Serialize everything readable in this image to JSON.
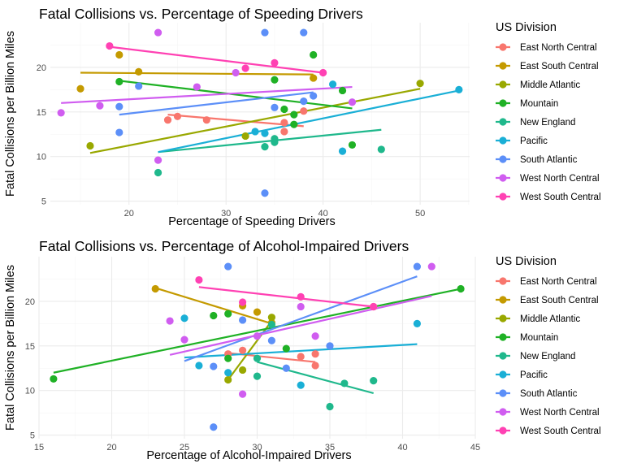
{
  "divisions": [
    "East North Central",
    "East South Central",
    "Middle Atlantic",
    "Mountain",
    "New England",
    "Pacific",
    "South Atlantic",
    "West North Central",
    "West South Central"
  ],
  "colors": {
    "East North Central": "#F8766D",
    "East South Central": "#C49A00",
    "Middle Atlantic": "#99A800",
    "Mountain": "#1FB125",
    "New England": "#1FB88C",
    "Pacific": "#1AAFD6",
    "South Atlantic": "#5C8FF8",
    "West North Central": "#D05DF0",
    "West South Central": "#FF41B3"
  },
  "chart_data": [
    {
      "type": "scatter",
      "title": "Fatal Collisions vs. Percentage of Speeding Drivers",
      "xlabel": "Percentage of Speeding Drivers",
      "ylabel": "Fatal Collisions per Billion Miles",
      "legend_title": "US Division",
      "xlim": [
        11.9,
        55.1
      ],
      "ylim": [
        4.6,
        25.0
      ],
      "xticks": [
        20,
        30,
        40,
        50
      ],
      "yticks": [
        5,
        10,
        15,
        20
      ],
      "grid": true,
      "legend_position": "right",
      "series": [
        {
          "name": "East North Central",
          "points": [
            [
              24,
              14.1
            ],
            [
              25,
              14.5
            ],
            [
              28,
              14.1
            ],
            [
              36,
              13.8
            ],
            [
              36,
              12.8
            ],
            [
              38,
              15.1
            ]
          ],
          "fit": [
            [
              24,
              14.7
            ],
            [
              38,
              13.4
            ]
          ]
        },
        {
          "name": "East South Central",
          "points": [
            [
              15,
              17.6
            ],
            [
              19,
              21.4
            ],
            [
              21,
              19.5
            ],
            [
              39,
              18.8
            ]
          ],
          "fit": [
            [
              15,
              19.4
            ],
            [
              39,
              19.2
            ]
          ]
        },
        {
          "name": "Middle Atlantic",
          "points": [
            [
              16,
              11.2
            ],
            [
              32,
              12.3
            ],
            [
              50,
              18.2
            ]
          ],
          "fit": [
            [
              16,
              10.4
            ],
            [
              50,
              17.6
            ]
          ]
        },
        {
          "name": "Mountain",
          "points": [
            [
              19,
              18.4
            ],
            [
              35,
              18.6
            ],
            [
              39,
              21.4
            ],
            [
              36,
              15.3
            ],
            [
              37,
              14.7
            ],
            [
              37,
              13.6
            ],
            [
              42,
              17.4
            ],
            [
              43,
              11.3
            ]
          ],
          "fit": [
            [
              19,
              18.5
            ],
            [
              43,
              15.4
            ]
          ]
        },
        {
          "name": "New England",
          "points": [
            [
              23,
              8.2
            ],
            [
              34,
              11.1
            ],
            [
              35,
              11.6
            ],
            [
              35,
              12.0
            ],
            [
              46,
              10.8
            ]
          ],
          "fit": [
            [
              23,
              10.5
            ],
            [
              46,
              13.0
            ]
          ]
        },
        {
          "name": "Pacific",
          "points": [
            [
              33,
              12.8
            ],
            [
              34,
              12.6
            ],
            [
              41,
              18.1
            ],
            [
              42,
              10.6
            ],
            [
              54,
              17.5
            ]
          ],
          "fit": [
            [
              23,
              10.5
            ],
            [
              54,
              17.4
            ]
          ]
        },
        {
          "name": "South Atlantic",
          "points": [
            [
              19,
              15.6
            ],
            [
              19,
              12.7
            ],
            [
              21,
              17.9
            ],
            [
              34,
              23.9
            ],
            [
              34,
              5.9
            ],
            [
              38,
              23.9
            ],
            [
              38,
              16.2
            ],
            [
              39,
              16.8
            ],
            [
              35,
              15.5
            ]
          ],
          "fit": [
            [
              19,
              14.7
            ],
            [
              39,
              17.2
            ]
          ]
        },
        {
          "name": "West North Central",
          "points": [
            [
              13,
              14.9
            ],
            [
              17,
              15.7
            ],
            [
              23,
              9.6
            ],
            [
              23,
              23.9
            ],
            [
              27,
              17.8
            ],
            [
              31,
              19.4
            ],
            [
              43,
              16.1
            ]
          ],
          "fit": [
            [
              13,
              16.0
            ],
            [
              43,
              17.8
            ]
          ]
        },
        {
          "name": "West South Central",
          "points": [
            [
              18,
              22.4
            ],
            [
              32,
              19.9
            ],
            [
              35,
              20.5
            ],
            [
              40,
              19.4
            ]
          ],
          "fit": [
            [
              18,
              22.3
            ],
            [
              40,
              19.4
            ]
          ]
        }
      ]
    },
    {
      "type": "scatter",
      "title": "Fatal Collisions vs. Percentage of Alcohol-Impaired Drivers",
      "xlabel": "Percentage of Alcohol-Impaired Drivers",
      "ylabel": "Fatal Collisions per Billion Miles",
      "legend_title": "US Division",
      "xlim": [
        15.0,
        45.0
      ],
      "ylim": [
        4.6,
        25.0
      ],
      "xticks": [
        15,
        20,
        25,
        30,
        35,
        40,
        45
      ],
      "yticks": [
        5,
        10,
        15,
        20
      ],
      "grid": true,
      "legend_position": "right",
      "series": [
        {
          "name": "East North Central",
          "points": [
            [
              28,
              14.1
            ],
            [
              29,
              14.5
            ],
            [
              33,
              13.8
            ],
            [
              34,
              14.1
            ],
            [
              34,
              12.8
            ],
            [
              38,
              19.4
            ]
          ],
          "fit": [
            [
              28,
              14.2
            ],
            [
              34,
              13.2
            ]
          ]
        },
        {
          "name": "East South Central",
          "points": [
            [
              23,
              21.4
            ],
            [
              29,
              19.5
            ],
            [
              30,
              18.8
            ],
            [
              31,
              17.6
            ]
          ],
          "fit": [
            [
              23,
              21.5
            ],
            [
              31,
              17.5
            ]
          ]
        },
        {
          "name": "Middle Atlantic",
          "points": [
            [
              28,
              11.2
            ],
            [
              29,
              12.3
            ],
            [
              31,
              18.2
            ]
          ],
          "fit": [
            [
              28,
              11.2
            ],
            [
              31,
              17.8
            ]
          ]
        },
        {
          "name": "Mountain",
          "points": [
            [
              16,
              11.3
            ],
            [
              27,
              18.4
            ],
            [
              28,
              18.6
            ],
            [
              28,
              13.6
            ],
            [
              32,
              14.7
            ],
            [
              44,
              21.4
            ]
          ],
          "fit": [
            [
              16,
              12.0
            ],
            [
              44,
              21.4
            ]
          ]
        },
        {
          "name": "New England",
          "points": [
            [
              30,
              13.6
            ],
            [
              30,
              11.6
            ],
            [
              31,
              17.4
            ],
            [
              35,
              8.2
            ],
            [
              36,
              10.8
            ],
            [
              38,
              11.1
            ]
          ],
          "fit": [
            [
              30,
              13.2
            ],
            [
              38,
              9.7
            ]
          ]
        },
        {
          "name": "Pacific",
          "points": [
            [
              25,
              18.1
            ],
            [
              26,
              12.8
            ],
            [
              28,
              12.0
            ],
            [
              33,
              10.6
            ],
            [
              41,
              17.5
            ]
          ],
          "fit": [
            [
              25,
              13.7
            ],
            [
              41,
              15.2
            ]
          ]
        },
        {
          "name": "South Atlantic",
          "points": [
            [
              27,
              5.9
            ],
            [
              27,
              12.7
            ],
            [
              28,
              23.9
            ],
            [
              29,
              17.9
            ],
            [
              31,
              15.6
            ],
            [
              32,
              12.5
            ],
            [
              35,
              15.0
            ],
            [
              41,
              23.9
            ]
          ],
          "fit": [
            [
              25,
              13.3
            ],
            [
              41,
              22.8
            ]
          ]
        },
        {
          "name": "West North Central",
          "points": [
            [
              24,
              17.8
            ],
            [
              25,
              15.7
            ],
            [
              29,
              9.6
            ],
            [
              30,
              16.1
            ],
            [
              33,
              19.4
            ],
            [
              34,
              16.1
            ],
            [
              42,
              23.9
            ]
          ],
          "fit": [
            [
              24,
              14.0
            ],
            [
              42,
              20.6
            ]
          ]
        },
        {
          "name": "West South Central",
          "points": [
            [
              26,
              22.4
            ],
            [
              29,
              19.9
            ],
            [
              33,
              20.5
            ],
            [
              38,
              19.4
            ]
          ],
          "fit": [
            [
              26,
              21.6
            ],
            [
              38,
              19.4
            ]
          ]
        }
      ]
    }
  ]
}
